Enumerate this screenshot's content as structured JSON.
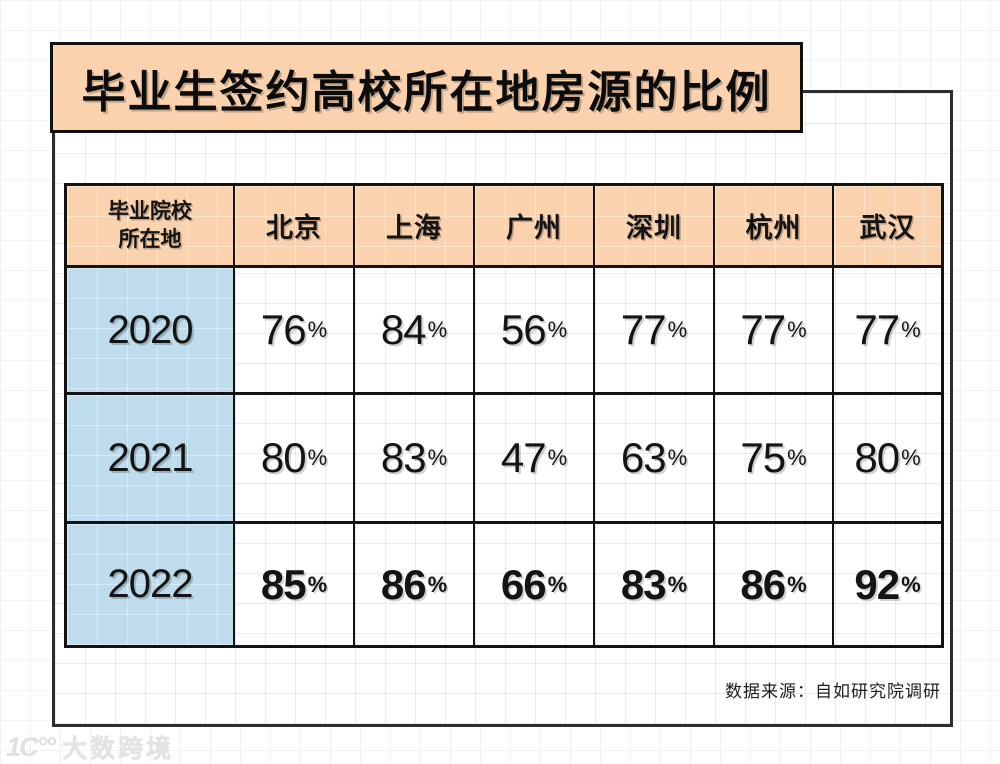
{
  "title": "毕业生签约高校所在地房源的比例",
  "table": {
    "corner_header": "毕业院校\n所在地",
    "unit": "%",
    "columns": [
      "北京",
      "上海",
      "广州",
      "深圳",
      "杭州",
      "武汉"
    ],
    "rows": [
      {
        "year": "2020",
        "values": [
          "76",
          "84",
          "56",
          "77",
          "77",
          "77"
        ]
      },
      {
        "year": "2021",
        "values": [
          "80",
          "83",
          "47",
          "63",
          "75",
          "80"
        ]
      },
      {
        "year": "2022",
        "values": [
          "85",
          "86",
          "66",
          "83",
          "86",
          "92"
        ]
      }
    ]
  },
  "source": "数据来源：自如研究院调研",
  "watermark": {
    "logo_text": "1C°°",
    "brand": "大数跨境"
  },
  "colors": {
    "banner_bg": "#fbd2ae",
    "year_col_bg": "#bfdcec",
    "table_border": "#121212",
    "panel_border": "#2d2d2d"
  },
  "chart_data": {
    "type": "table",
    "title": "毕业生签约高校所在地房源的比例",
    "row_header_label": "毕业院校所在地",
    "columns": [
      "北京",
      "上海",
      "广州",
      "深圳",
      "杭州",
      "武汉"
    ],
    "rows": [
      {
        "label": "2020",
        "values_percent": [
          76,
          84,
          56,
          77,
          77,
          77
        ]
      },
      {
        "label": "2021",
        "values_percent": [
          80,
          83,
          47,
          63,
          75,
          80
        ]
      },
      {
        "label": "2022",
        "values_percent": [
          85,
          86,
          66,
          83,
          86,
          92
        ],
        "emphasis": "bold"
      }
    ],
    "unit": "%",
    "source": "数据来源：自如研究院调研",
    "legend_position": "none",
    "grid": true
  }
}
